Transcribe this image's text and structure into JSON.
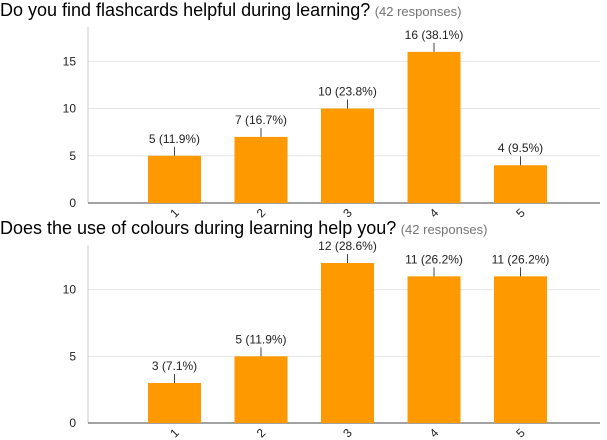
{
  "chart_data": [
    {
      "type": "bar",
      "title": "Do you find flashcards helpful during learning?",
      "subtitle": "(42 responses)",
      "categories": [
        "1",
        "2",
        "3",
        "4",
        "5"
      ],
      "values": [
        5,
        7,
        10,
        16,
        4
      ],
      "data_labels": [
        "5 (11.9%)",
        "7 (16.7%)",
        "10 (23.8%)",
        "16 (38.1%)",
        "4 (9.5%)"
      ],
      "yticks": [
        0,
        5,
        10,
        15
      ],
      "ylim": [
        0,
        18
      ],
      "bar_color": "#FF9900",
      "grid": true
    },
    {
      "type": "bar",
      "title": "Does the use of colours during learning help you?",
      "subtitle": "(42 responses)",
      "categories": [
        "1",
        "2",
        "3",
        "4",
        "5"
      ],
      "values": [
        3,
        5,
        12,
        11,
        11
      ],
      "data_labels": [
        "3 (7.1%)",
        "5 (11.9%)",
        "12 (28.6%)",
        "11 (26.2%)",
        "11 (26.2%)"
      ],
      "yticks": [
        0,
        5,
        10
      ],
      "ylim": [
        0,
        12.9
      ],
      "bar_color": "#FF9900",
      "grid": true
    }
  ]
}
